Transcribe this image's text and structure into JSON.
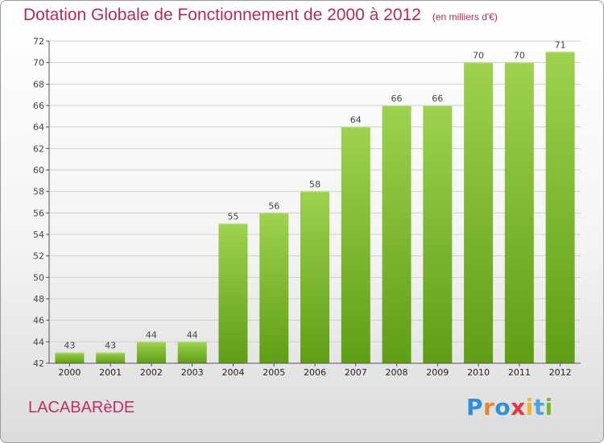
{
  "title": {
    "main": "Dotation Globale de Fonctionnement de 2000 à 2012",
    "units": "(en milliers d'€)"
  },
  "location": "LACABARèDE",
  "brand": {
    "logo_text": "Proxiti",
    "letters": [
      "P",
      "r",
      "o",
      "x",
      "i",
      "t",
      "i"
    ],
    "letter_colors": [
      "#2f8fd8",
      "#e8862a",
      "#2f8fd8",
      "#e23b3b",
      "#f2b531",
      "#4aa3e2",
      "#78b82a"
    ]
  },
  "colors": {
    "title": "#b5295a",
    "bar_top": "#9ed24f",
    "bar_bottom": "#5f9e14",
    "grid": "#cfcfcf",
    "axis": "#555555"
  },
  "chart_data": {
    "type": "bar",
    "title": "Dotation Globale de Fonctionnement de 2000 à 2012",
    "subtitle": "(en milliers d'€)",
    "xlabel": "",
    "ylabel": "",
    "categories": [
      "2000",
      "2001",
      "2002",
      "2003",
      "2004",
      "2005",
      "2006",
      "2007",
      "2008",
      "2009",
      "2010",
      "2011",
      "2012"
    ],
    "values": [
      43,
      43,
      44,
      44,
      55,
      56,
      58,
      64,
      66,
      66,
      70,
      70,
      71
    ],
    "ylim": [
      42,
      72
    ],
    "yticks": [
      42,
      44,
      46,
      48,
      50,
      52,
      54,
      56,
      58,
      60,
      62,
      64,
      66,
      68,
      70,
      72
    ],
    "grid": true,
    "legend": "none"
  }
}
